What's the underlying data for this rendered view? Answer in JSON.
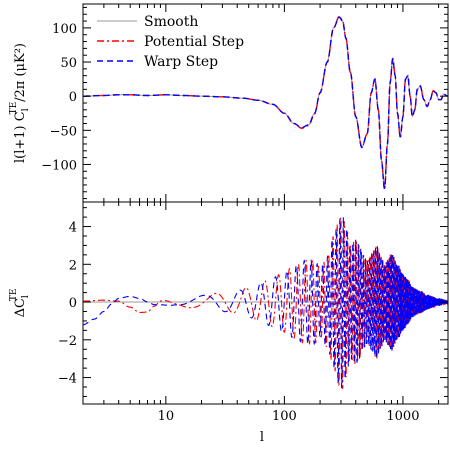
{
  "chart_data": [
    {
      "type": "line",
      "panel": "top",
      "ylabel": "l(l+1) C_l^TE / 2π (μK²)",
      "ylabel_parts": {
        "pre": "l(l+1) C",
        "sub": "l",
        "sup": "TE",
        "post": "/2π (μK²)"
      },
      "xscale": "log",
      "xlim": [
        2,
        2400
      ],
      "ylim": [
        -155,
        135
      ],
      "yticks": [
        100,
        50,
        0,
        -50,
        -100
      ],
      "legend_placement": "top-left",
      "legend": [
        {
          "label": "Smooth",
          "color": "#999999",
          "dash": "solid"
        },
        {
          "label": "Potential Step",
          "color": "#ff0000",
          "dash": "dashdot"
        },
        {
          "label": "Warp Step",
          "color": "#0000ff",
          "dash": "dashed"
        }
      ],
      "series": [
        {
          "name": "Smooth",
          "color": "#999999",
          "x": [
            2,
            3,
            4,
            5,
            7,
            10,
            14,
            20,
            30,
            45,
            60,
            80,
            100,
            120,
            140,
            160,
            180,
            200,
            230,
            260,
            290,
            310,
            330,
            360,
            400,
            450,
            500,
            540,
            580,
            620,
            660,
            700,
            740,
            780,
            820,
            860,
            900,
            950,
            1000,
            1050,
            1100,
            1150,
            1200,
            1260,
            1320,
            1400,
            1500,
            1600,
            1700,
            1800,
            1900,
            2000,
            2100,
            2200,
            2400
          ],
          "y": [
            0,
            1,
            2,
            2,
            1,
            2,
            1,
            0,
            -1,
            -3,
            -6,
            -12,
            -25,
            -40,
            -46,
            -42,
            -25,
            5,
            50,
            100,
            115,
            110,
            85,
            35,
            -30,
            -75,
            -55,
            5,
            25,
            -20,
            -95,
            -135,
            -70,
            20,
            55,
            30,
            -25,
            -60,
            -30,
            25,
            30,
            0,
            -30,
            -20,
            10,
            15,
            -5,
            -15,
            -5,
            8,
            5,
            -5,
            -5,
            3,
            0
          ]
        },
        {
          "name": "Potential Step",
          "color": "#ff0000",
          "x": [
            2,
            3,
            4,
            5,
            7,
            10,
            14,
            20,
            30,
            45,
            60,
            80,
            100,
            120,
            140,
            160,
            180,
            200,
            230,
            260,
            290,
            310,
            330,
            360,
            400,
            450,
            500,
            540,
            580,
            620,
            660,
            700,
            740,
            780,
            820,
            860,
            900,
            950,
            1000,
            1050,
            1100,
            1150,
            1200,
            1260,
            1320,
            1400,
            1500,
            1600,
            1700,
            1800,
            1900,
            2000,
            2100,
            2200,
            2400
          ],
          "y": [
            0,
            1,
            2,
            2,
            1,
            2,
            1,
            0,
            -1,
            -3,
            -6,
            -12,
            -25,
            -40,
            -47,
            -43,
            -26,
            5,
            50,
            100,
            117,
            111,
            85,
            35,
            -30,
            -75,
            -55,
            5,
            25,
            -20,
            -95,
            -137,
            -70,
            20,
            56,
            30,
            -25,
            -60,
            -30,
            25,
            30,
            0,
            -30,
            -20,
            10,
            15,
            -5,
            -15,
            -5,
            8,
            5,
            -5,
            -5,
            3,
            0
          ]
        },
        {
          "name": "Warp Step",
          "color": "#0000ff",
          "x": [
            2,
            3,
            4,
            5,
            7,
            10,
            14,
            20,
            30,
            45,
            60,
            80,
            100,
            120,
            140,
            160,
            180,
            200,
            230,
            260,
            290,
            310,
            330,
            360,
            400,
            450,
            500,
            540,
            580,
            620,
            660,
            700,
            740,
            780,
            820,
            860,
            900,
            950,
            1000,
            1050,
            1100,
            1150,
            1200,
            1260,
            1320,
            1400,
            1500,
            1600,
            1700,
            1800,
            1900,
            2000,
            2100,
            2200,
            2400
          ],
          "y": [
            0,
            1,
            2,
            2,
            1,
            2,
            1,
            0,
            -1,
            -3,
            -6,
            -12,
            -25,
            -40,
            -46,
            -42,
            -25,
            5,
            50,
            100,
            116,
            110,
            85,
            35,
            -30,
            -75,
            -55,
            5,
            25,
            -20,
            -95,
            -136,
            -70,
            20,
            55,
            30,
            -25,
            -60,
            -30,
            25,
            30,
            0,
            -30,
            -20,
            10,
            15,
            -5,
            -15,
            -5,
            8,
            5,
            -5,
            -5,
            3,
            0
          ]
        }
      ]
    },
    {
      "type": "line",
      "panel": "bottom",
      "xlabel": "l",
      "ylabel": "ΔC_l^TE",
      "ylabel_parts": {
        "pre": "ΔC",
        "sub": "l",
        "sup": "TE",
        "post": ""
      },
      "xscale": "log",
      "xlim": [
        2,
        2400
      ],
      "ylim": [
        -5.4,
        5.3
      ],
      "yticks": [
        4,
        2,
        0,
        -2,
        -4
      ],
      "xticks": [
        {
          "value": 10,
          "label": "10"
        },
        {
          "value": 100,
          "label": "100"
        },
        {
          "value": 1000,
          "label": "1000"
        }
      ],
      "envelope_x": [
        2,
        3,
        4,
        6,
        8,
        12,
        16,
        20,
        30,
        40,
        50,
        60,
        80,
        100,
        120,
        150,
        180,
        200,
        230,
        260,
        290,
        310,
        330,
        360,
        400,
        430,
        460,
        500,
        550,
        600,
        650,
        700,
        750,
        800,
        900,
        1000,
        1100,
        1200,
        1400,
        1600,
        1800,
        2000,
        2400
      ],
      "envelope_amp": [
        0,
        0,
        0,
        0.05,
        0.12,
        0.2,
        0.3,
        0.35,
        0.5,
        0.6,
        0.8,
        1.0,
        1.3,
        1.6,
        1.9,
        2.2,
        2.2,
        1.8,
        2.4,
        3.5,
        4.4,
        4.6,
        4.0,
        3.0,
        3.3,
        3.0,
        2.5,
        2.2,
        2.6,
        3.0,
        2.5,
        2.0,
        2.3,
        2.6,
        2.0,
        1.5,
        1.2,
        0.8,
        0.6,
        0.4,
        0.3,
        0.2,
        0.1
      ],
      "series": [
        {
          "name": "Smooth",
          "color": "#999999",
          "x": [
            2,
            2400
          ],
          "y": [
            0,
            0
          ]
        },
        {
          "name": "Potential Step",
          "color": "#ff0000",
          "x": [
            2,
            3,
            4,
            5,
            6,
            7,
            8,
            9,
            10,
            12,
            15
          ],
          "y": [
            0.05,
            0.1,
            0.05,
            -0.3,
            -0.6,
            -0.6,
            -0.3,
            0,
            0.05,
            0,
            0
          ]
        },
        {
          "name": "Warp Step",
          "color": "#0000ff",
          "x": [
            2,
            2.5,
            3,
            3.5,
            4,
            5,
            6,
            7,
            8,
            10,
            12,
            15
          ],
          "y": [
            -1.2,
            -0.9,
            -0.5,
            -0.1,
            0.2,
            0.3,
            0.2,
            0.05,
            -0.05,
            0,
            0.03,
            0
          ]
        }
      ]
    }
  ]
}
